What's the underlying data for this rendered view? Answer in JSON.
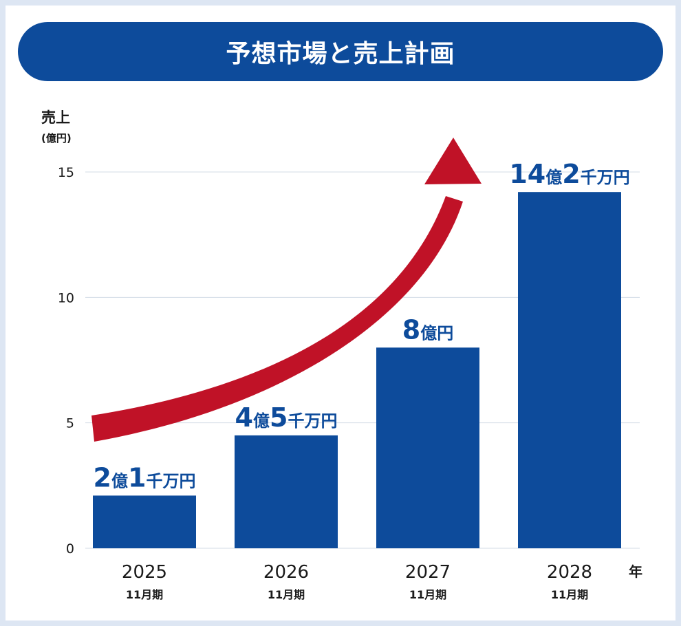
{
  "title": "予想市場と売上計画",
  "colors": {
    "bar": "#0d4b9b",
    "arrow": "#c01227",
    "banner": "#0d4b9b",
    "grid": "#d3dbe6",
    "label": "#0d4b9b"
  },
  "chart_data": {
    "type": "bar",
    "title": "予想市場と売上計画",
    "ylabel": "売上",
    "ylabel_unit": "(億円)",
    "xlabel": "年",
    "ylim": [
      0,
      15
    ],
    "yticks": [
      0,
      5,
      10,
      15
    ],
    "grid": true,
    "categories": [
      "2025",
      "2026",
      "2027",
      "2028"
    ],
    "category_sublabel": "11月期",
    "values": [
      2.1,
      4.5,
      8,
      14.2
    ],
    "data_labels": [
      [
        {
          "t": "2",
          "big": true
        },
        {
          "t": "億",
          "big": false
        },
        {
          "t": "1",
          "big": true
        },
        {
          "t": "千万円",
          "big": false
        }
      ],
      [
        {
          "t": "4",
          "big": true
        },
        {
          "t": "億",
          "big": false
        },
        {
          "t": "5",
          "big": true
        },
        {
          "t": "千万円",
          "big": false
        }
      ],
      [
        {
          "t": "8",
          "big": true
        },
        {
          "t": "億円",
          "big": false
        }
      ],
      [
        {
          "t": "14",
          "big": true
        },
        {
          "t": "億",
          "big": false
        },
        {
          "t": "2",
          "big": true
        },
        {
          "t": "千万円",
          "big": false
        }
      ]
    ],
    "trend_arrow": "upward growth arrow"
  }
}
